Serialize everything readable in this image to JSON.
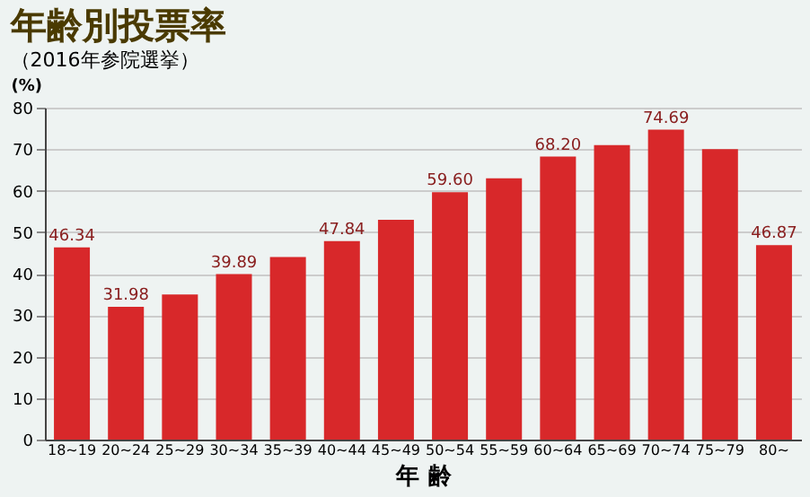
{
  "chart_data": {
    "type": "bar",
    "title": "年齢別投票率",
    "subtitle": "（2016年参院選挙）",
    "xlabel": "年 齢",
    "ylabel": "(%)",
    "categories": [
      "18~19",
      "20~24",
      "25~29",
      "30~34",
      "35~39",
      "40~44",
      "45~49",
      "50~54",
      "55~59",
      "60~64",
      "65~69",
      "70~74",
      "75~79",
      "80~"
    ],
    "values": [
      46.34,
      31.98,
      35,
      39.89,
      44,
      47.84,
      53,
      59.6,
      63,
      68.2,
      71,
      74.69,
      70,
      46.87
    ],
    "value_labels": [
      "46.34",
      "31.98",
      null,
      "39.89",
      null,
      "47.84",
      null,
      "59.60",
      null,
      "68.20",
      null,
      "74.69",
      null,
      "46.87"
    ],
    "color": "#d8282a",
    "ylim": [
      0,
      80
    ],
    "yticks": [
      0,
      10,
      20,
      30,
      40,
      50,
      60,
      70,
      80
    ],
    "grid": "y"
  }
}
